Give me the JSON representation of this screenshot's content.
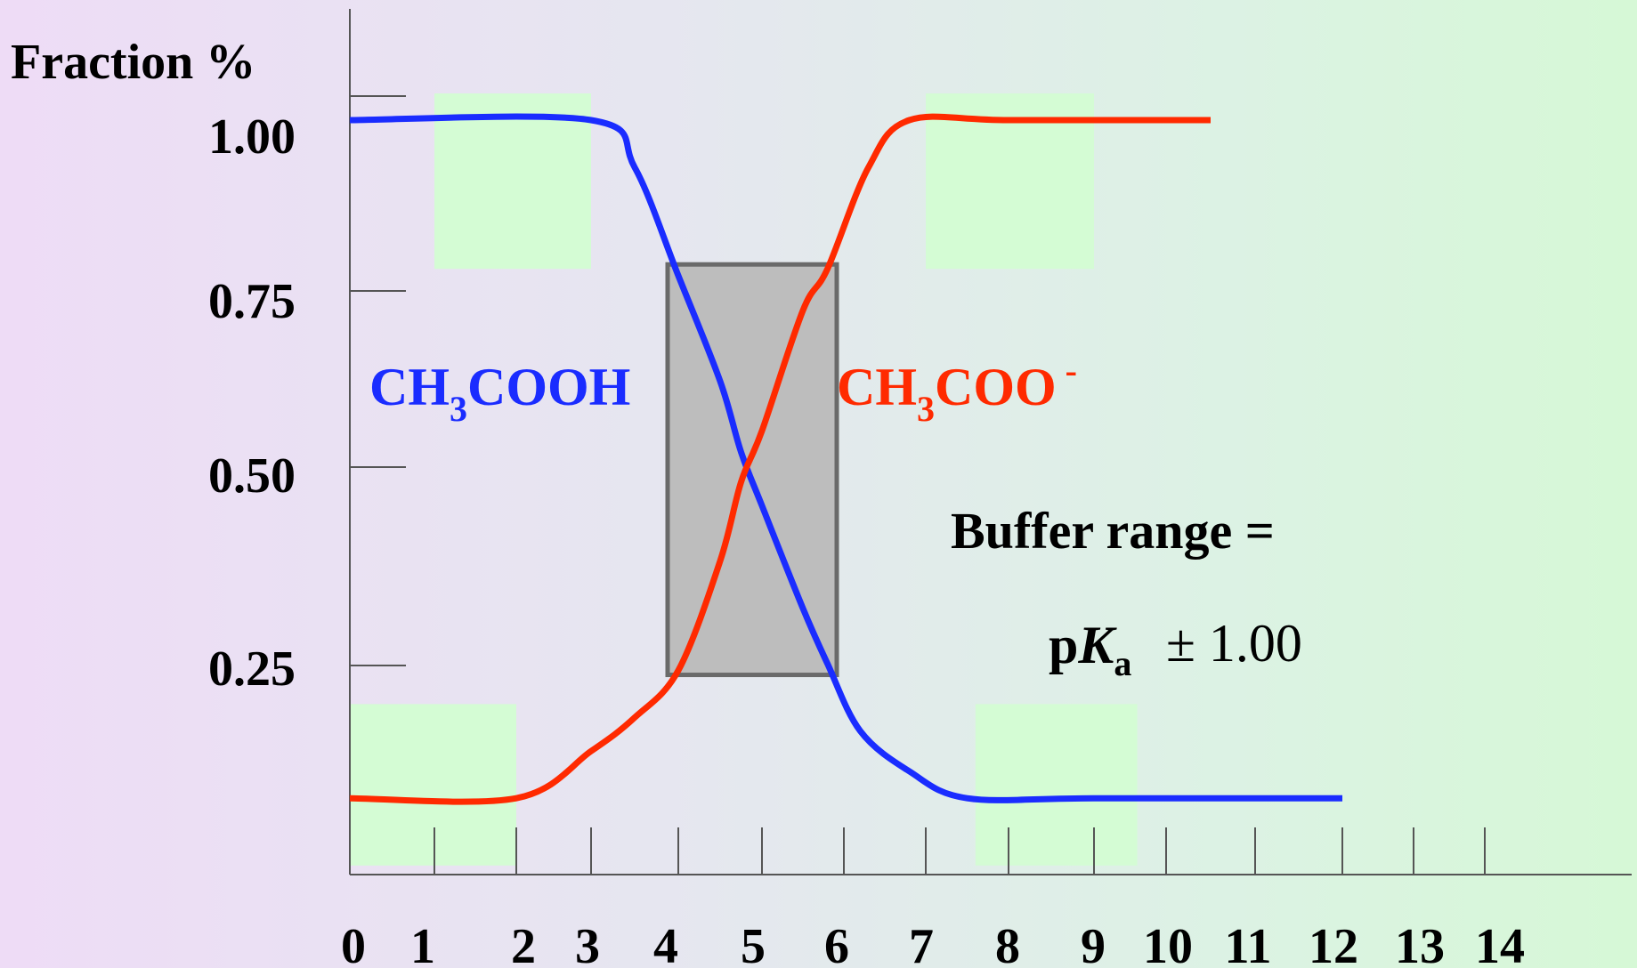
{
  "chart_data": {
    "type": "line",
    "ylabel": "Fraction %",
    "xlabel": "",
    "x_ticks": [
      "0",
      "1",
      "2",
      "3",
      "4",
      "5",
      "6",
      "7",
      "8",
      "9",
      "10",
      "11",
      "12",
      "13",
      "14"
    ],
    "y_ticks": [
      "1.00",
      "0.75",
      "0.50",
      "0.25"
    ],
    "xlim": [
      0,
      14
    ],
    "ylim": [
      0,
      1.1
    ],
    "series": [
      {
        "name": "CH3COOH",
        "color": "#1a2cff",
        "points": [
          [
            0,
            1.0
          ],
          [
            3.0,
            1.0
          ],
          [
            3.5,
            0.93
          ],
          [
            4.0,
            0.77
          ],
          [
            4.5,
            0.62
          ],
          [
            4.75,
            0.52
          ],
          [
            5.0,
            0.45
          ],
          [
            5.5,
            0.32
          ],
          [
            5.8,
            0.25
          ],
          [
            6.2,
            0.15
          ],
          [
            6.8,
            0.09
          ],
          [
            7.5,
            0.05
          ],
          [
            9,
            0.05
          ],
          [
            12,
            0.05
          ]
        ]
      },
      {
        "name": "CH3COO -",
        "color": "#ff2a00",
        "points": [
          [
            0,
            0.05
          ],
          [
            2.0,
            0.05
          ],
          [
            3.0,
            0.12
          ],
          [
            3.5,
            0.17
          ],
          [
            4.0,
            0.24
          ],
          [
            4.5,
            0.38
          ],
          [
            4.75,
            0.48
          ],
          [
            5.0,
            0.55
          ],
          [
            5.5,
            0.72
          ],
          [
            5.8,
            0.78
          ],
          [
            6.3,
            0.93
          ],
          [
            6.8,
            1.0
          ],
          [
            8,
            1.0
          ],
          [
            10.5,
            1.0
          ]
        ]
      }
    ],
    "buffer_box": {
      "x_range": [
        4,
        6
      ],
      "y_range": [
        0.24,
        0.78
      ]
    },
    "highlight_regions": [
      {
        "x_range": [
          1.0,
          3.0
        ],
        "y_range": [
          0.78,
          1.04
        ]
      },
      {
        "x_range": [
          7.0,
          9.0
        ],
        "y_range": [
          0.78,
          1.04
        ]
      },
      {
        "x_range": [
          0.0,
          2.0
        ],
        "y_range": [
          -0.05,
          0.19
        ]
      },
      {
        "x_range": [
          7.6,
          9.6
        ],
        "y_range": [
          -0.05,
          0.19
        ]
      }
    ],
    "annotations": {
      "acid_label": "CH3COOH",
      "base_label": "CH3COO -",
      "buffer_line1": "Buffer range =",
      "buffer_pKa": "pKa",
      "buffer_pm": "± 1.00"
    }
  }
}
